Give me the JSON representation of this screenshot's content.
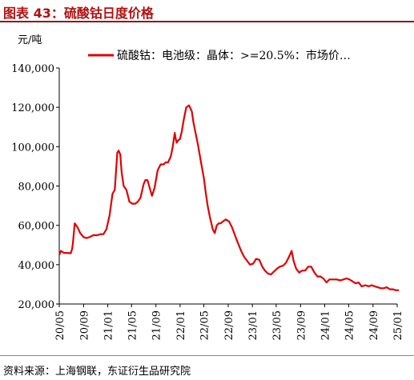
{
  "figure_title": "图表 43：硫酸钴日度价格",
  "source_note": "资料来源：上海钢联，东证衍生品研究院",
  "chart_data": {
    "type": "line",
    "yunit": "元/吨",
    "ylim": [
      20000,
      140000
    ],
    "yticks": [
      "20,000",
      "40,000",
      "60,000",
      "80,000",
      "100,000",
      "120,000",
      "140,000"
    ],
    "ytick_values": [
      20000,
      40000,
      60000,
      80000,
      100000,
      120000,
      140000
    ],
    "xlim": [
      "2020-05",
      "2025-01"
    ],
    "xticks": [
      "20/05",
      "20/09",
      "21/01",
      "21/05",
      "21/09",
      "22/01",
      "22/05",
      "22/09",
      "23/01",
      "23/05",
      "23/09",
      "24/01",
      "24/05",
      "24/09",
      "25/01"
    ],
    "legend_position": "top",
    "grid": false,
    "color": "#e00000",
    "series": [
      {
        "name": "硫酸钴：电池级：晶体：>=20.5%：市场价…",
        "x": [
          "2020-05-01",
          "2020-05-10",
          "2020-05-25",
          "2020-06-10",
          "2020-06-28",
          "2020-07-05",
          "2020-07-10",
          "2020-07-18",
          "2020-08-01",
          "2020-08-15",
          "2020-09-01",
          "2020-09-15",
          "2020-10-01",
          "2020-10-20",
          "2020-11-10",
          "2020-11-25",
          "2020-12-10",
          "2020-12-25",
          "2021-01-10",
          "2021-01-25",
          "2021-02-05",
          "2021-02-18",
          "2021-02-25",
          "2021-03-05",
          "2021-03-12",
          "2021-03-22",
          "2021-04-05",
          "2021-04-20",
          "2021-05-05",
          "2021-05-20",
          "2021-06-01",
          "2021-06-15",
          "2021-07-01",
          "2021-07-10",
          "2021-07-20",
          "2021-08-01",
          "2021-08-12",
          "2021-08-25",
          "2021-09-10",
          "2021-09-25",
          "2021-10-10",
          "2021-10-20",
          "2021-11-01",
          "2021-11-15",
          "2021-11-25",
          "2021-12-05",
          "2021-12-10",
          "2021-12-15",
          "2021-12-20",
          "2022-01-01",
          "2022-01-10",
          "2022-01-20",
          "2022-02-01",
          "2022-02-15",
          "2022-03-01",
          "2022-03-10",
          "2022-03-18",
          "2022-04-01",
          "2022-04-15",
          "2022-05-01",
          "2022-05-10",
          "2022-05-20",
          "2022-06-01",
          "2022-06-15",
          "2022-06-25",
          "2022-07-05",
          "2022-07-15",
          "2022-07-25",
          "2022-08-05",
          "2022-08-20",
          "2022-09-05",
          "2022-09-20",
          "2022-10-05",
          "2022-10-20",
          "2022-11-05",
          "2022-11-20",
          "2022-12-05",
          "2022-12-20",
          "2023-01-05",
          "2023-01-20",
          "2023-02-05",
          "2023-02-20",
          "2023-03-05",
          "2023-03-20",
          "2023-04-05",
          "2023-04-20",
          "2023-05-05",
          "2023-05-20",
          "2023-06-05",
          "2023-06-20",
          "2023-07-05",
          "2023-07-18",
          "2023-07-28",
          "2023-08-10",
          "2023-08-25",
          "2023-09-10",
          "2023-09-25",
          "2023-10-10",
          "2023-10-25",
          "2023-11-10",
          "2023-11-25",
          "2023-12-10",
          "2023-12-25",
          "2024-01-10",
          "2024-01-25",
          "2024-02-10",
          "2024-03-01",
          "2024-03-20",
          "2024-04-05",
          "2024-04-20",
          "2024-05-05",
          "2024-05-20",
          "2024-06-05",
          "2024-06-20",
          "2024-07-05",
          "2024-07-25",
          "2024-08-10",
          "2024-08-25",
          "2024-09-10",
          "2024-09-25",
          "2024-10-10",
          "2024-10-25",
          "2024-11-10",
          "2024-11-25",
          "2024-12-10",
          "2024-12-25",
          "2025-01-10"
        ],
        "values": [
          45000,
          47000,
          46000,
          46000,
          45800,
          48000,
          52000,
          61000,
          59000,
          56000,
          54000,
          53500,
          54000,
          55000,
          55000,
          55500,
          55500,
          58000,
          65000,
          76000,
          78000,
          97000,
          98000,
          96000,
          87000,
          80000,
          78000,
          72000,
          71000,
          71000,
          72000,
          74000,
          81000,
          83000,
          83000,
          79000,
          75000,
          79000,
          88000,
          91000,
          91000,
          92000,
          92000,
          95000,
          100000,
          107000,
          104000,
          102000,
          103000,
          104000,
          108000,
          114000,
          120000,
          121000,
          118000,
          112000,
          108000,
          101000,
          93000,
          84000,
          77000,
          70000,
          64000,
          58000,
          56000,
          60000,
          61000,
          61000,
          62000,
          63000,
          62000,
          59000,
          55000,
          51000,
          47000,
          44000,
          42000,
          40000,
          40500,
          43000,
          42500,
          39000,
          37000,
          35500,
          35000,
          36500,
          38000,
          39000,
          39500,
          41000,
          44000,
          47000,
          42000,
          38000,
          36000,
          37000,
          37000,
          39000,
          39000,
          36000,
          34000,
          34000,
          33000,
          31000,
          32500,
          32500,
          32500,
          32000,
          32500,
          33000,
          32500,
          31500,
          30500,
          31000,
          29000,
          29500,
          29000,
          29500,
          29000,
          28500,
          28000,
          28000,
          28500,
          27500,
          27500,
          27000,
          27000
        ]
      }
    ]
  }
}
